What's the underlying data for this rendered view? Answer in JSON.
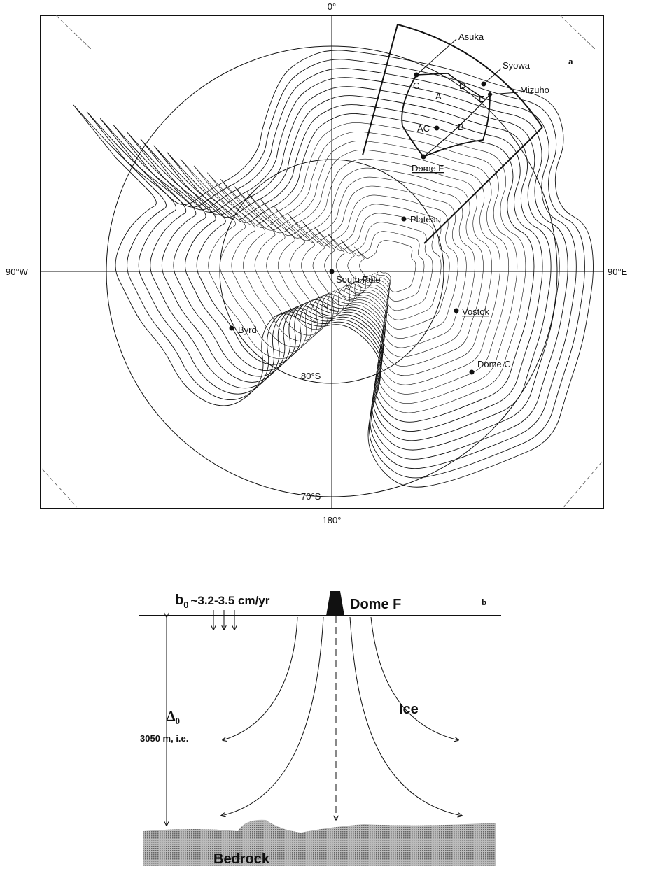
{
  "panel_a": {
    "panel_label": "a",
    "meridians": {
      "top": "0°",
      "bottom": "180°",
      "left": "90°W",
      "right": "90°E"
    },
    "latitudes": {
      "inner": "80°S",
      "outer": "70°S"
    },
    "stations": {
      "asuka": "Asuka",
      "syowa": "Syowa",
      "mizuho": "Mizuho",
      "ac": "AC",
      "dome_f": "Dome F",
      "plateau": "Plateau",
      "south_pole": "South Pole",
      "vostok": "Vostok",
      "dome_c": "Dome C",
      "byrd": "Byrd"
    },
    "route_points": {
      "a": "A",
      "b": "B",
      "c": "C",
      "d": "D",
      "e": "E"
    }
  },
  "panel_b": {
    "panel_label": "b",
    "accumulation_symbol": "b",
    "accumulation_subscript": "0",
    "accumulation_text": "~3.2-3.5 cm/yr",
    "site": "Dome F",
    "thickness_symbol": "Δ",
    "thickness_subscript": "0",
    "thickness_text": "3050 m, i.e.",
    "ice": "Ice",
    "bedrock": "Bedrock"
  }
}
